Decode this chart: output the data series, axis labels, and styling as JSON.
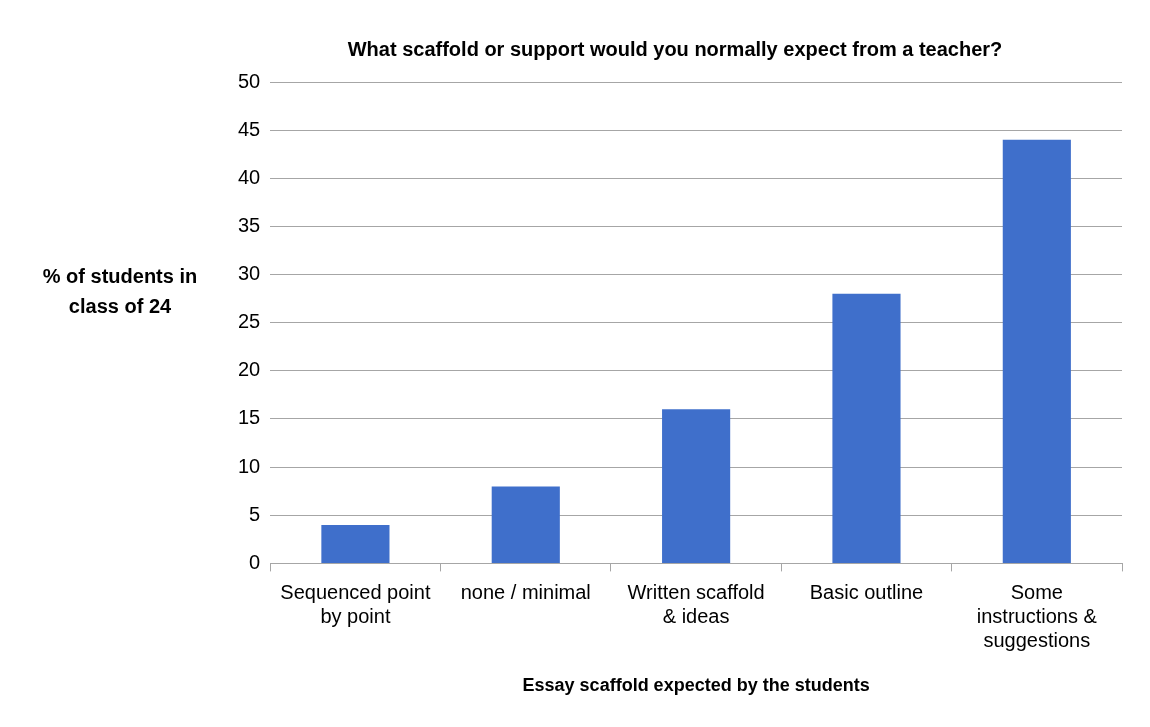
{
  "chart_data": {
    "type": "bar",
    "title": "What scaffold or support would you normally expect from a teacher?",
    "xlabel": "Essay scaffold expected by the students",
    "ylabel": "% of students in class of 24",
    "categories": [
      "Sequenced point by point",
      "none / minimal",
      "Written scaffold & ideas",
      "Basic outline",
      "Some instructions & suggestions"
    ],
    "values": [
      4,
      8,
      16,
      28,
      44
    ],
    "color": "#3f6fcb",
    "ylim": [
      0,
      50
    ],
    "yticks": [
      0,
      5,
      10,
      15,
      20,
      25,
      30,
      35,
      40,
      45,
      50
    ],
    "grid": "y"
  }
}
